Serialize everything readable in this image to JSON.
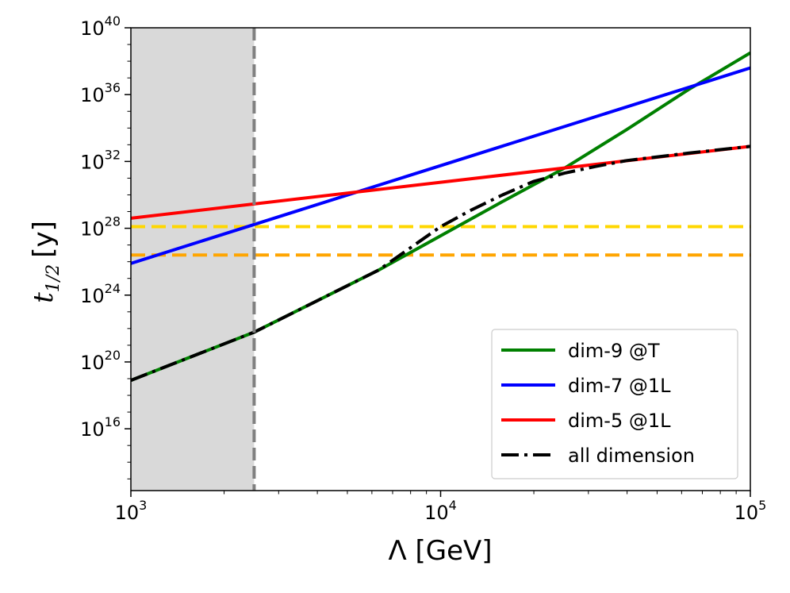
{
  "chart_data": {
    "type": "line",
    "xscale": "log",
    "yscale": "log",
    "xlim": [
      1000,
      100000
    ],
    "ylim_log10": [
      12.3,
      40
    ],
    "xlabel": "Λ [GeV]",
    "ylabel": "t",
    "ylabel_sub": "1/2",
    "ylabel_unit": "[y]",
    "x_ticks": [
      {
        "base": "10",
        "exp": "3",
        "log10": 3
      },
      {
        "base": "10",
        "exp": "4",
        "log10": 4
      },
      {
        "base": "10",
        "exp": "5",
        "log10": 5
      }
    ],
    "y_ticks": [
      {
        "base": "10",
        "exp": "16",
        "log10": 16
      },
      {
        "base": "10",
        "exp": "20",
        "log10": 20
      },
      {
        "base": "10",
        "exp": "24",
        "log10": 24
      },
      {
        "base": "10",
        "exp": "28",
        "log10": 28
      },
      {
        "base": "10",
        "exp": "32",
        "log10": 32
      },
      {
        "base": "10",
        "exp": "36",
        "log10": 36
      },
      {
        "base": "10",
        "exp": "40",
        "log10": 40
      }
    ],
    "excluded_region": {
      "x_from": 1000,
      "x_to": 2500,
      "color": "#d9d9d9",
      "boundary_color": "#808080"
    },
    "reference_lines": [
      {
        "log10_y": 28.1,
        "color": "#ffd700",
        "style": "dashed"
      },
      {
        "log10_y": 26.4,
        "color": "#ffa500",
        "style": "dashed"
      }
    ],
    "series": [
      {
        "name": "dim-9 @T",
        "color": "#008000",
        "style": "solid",
        "log10_x": [
          3,
          3.4,
          3.8,
          4.2,
          4.4,
          4.6,
          4.8,
          5
        ],
        "log10_y": [
          18.9,
          21.8,
          25.5,
          29.6,
          31.6,
          33.9,
          36.3,
          38.5
        ]
      },
      {
        "name": "dim-7 @1L",
        "color": "#0000ff",
        "style": "solid",
        "log10_x": [
          3,
          5
        ],
        "log10_y": [
          25.9,
          37.6
        ]
      },
      {
        "name": "dim-5 @1L",
        "color": "#ff0000",
        "style": "solid",
        "log10_x": [
          3,
          5
        ],
        "log10_y": [
          28.6,
          32.9
        ]
      },
      {
        "name": "all dimension",
        "color": "#000000",
        "style": "dashdot",
        "log10_x": [
          3,
          3.4,
          3.8,
          4.0,
          4.1,
          4.2,
          4.3,
          4.4,
          4.5,
          4.6,
          4.8,
          5
        ],
        "log10_y": [
          18.9,
          21.8,
          25.5,
          28.1,
          29.1,
          30.0,
          30.8,
          31.3,
          31.7,
          32.05,
          32.5,
          32.9
        ]
      }
    ],
    "legend_position": "lower-right"
  }
}
